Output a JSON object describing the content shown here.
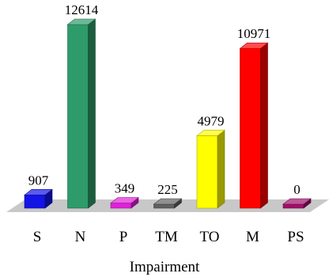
{
  "chart_data": {
    "type": "bar",
    "style": "3d",
    "categories": [
      "S",
      "N",
      "P",
      "TM",
      "TO",
      "M",
      "PS"
    ],
    "values": [
      907,
      12614,
      349,
      225,
      4979,
      10971,
      0
    ],
    "value_labels": [
      "907",
      "12614",
      "349",
      "225",
      "4979",
      "10971",
      "0"
    ],
    "colors": [
      "#1414e6",
      "#2e9b6a",
      "#e020d8",
      "#606060",
      "#ffff00",
      "#ff0000",
      "#a0106a"
    ],
    "title": "",
    "xlabel": "Impairment",
    "ylabel": "",
    "ylim": [
      0,
      12614
    ],
    "grid": false,
    "legend": "none",
    "floor_color": "#c8c8c8"
  }
}
